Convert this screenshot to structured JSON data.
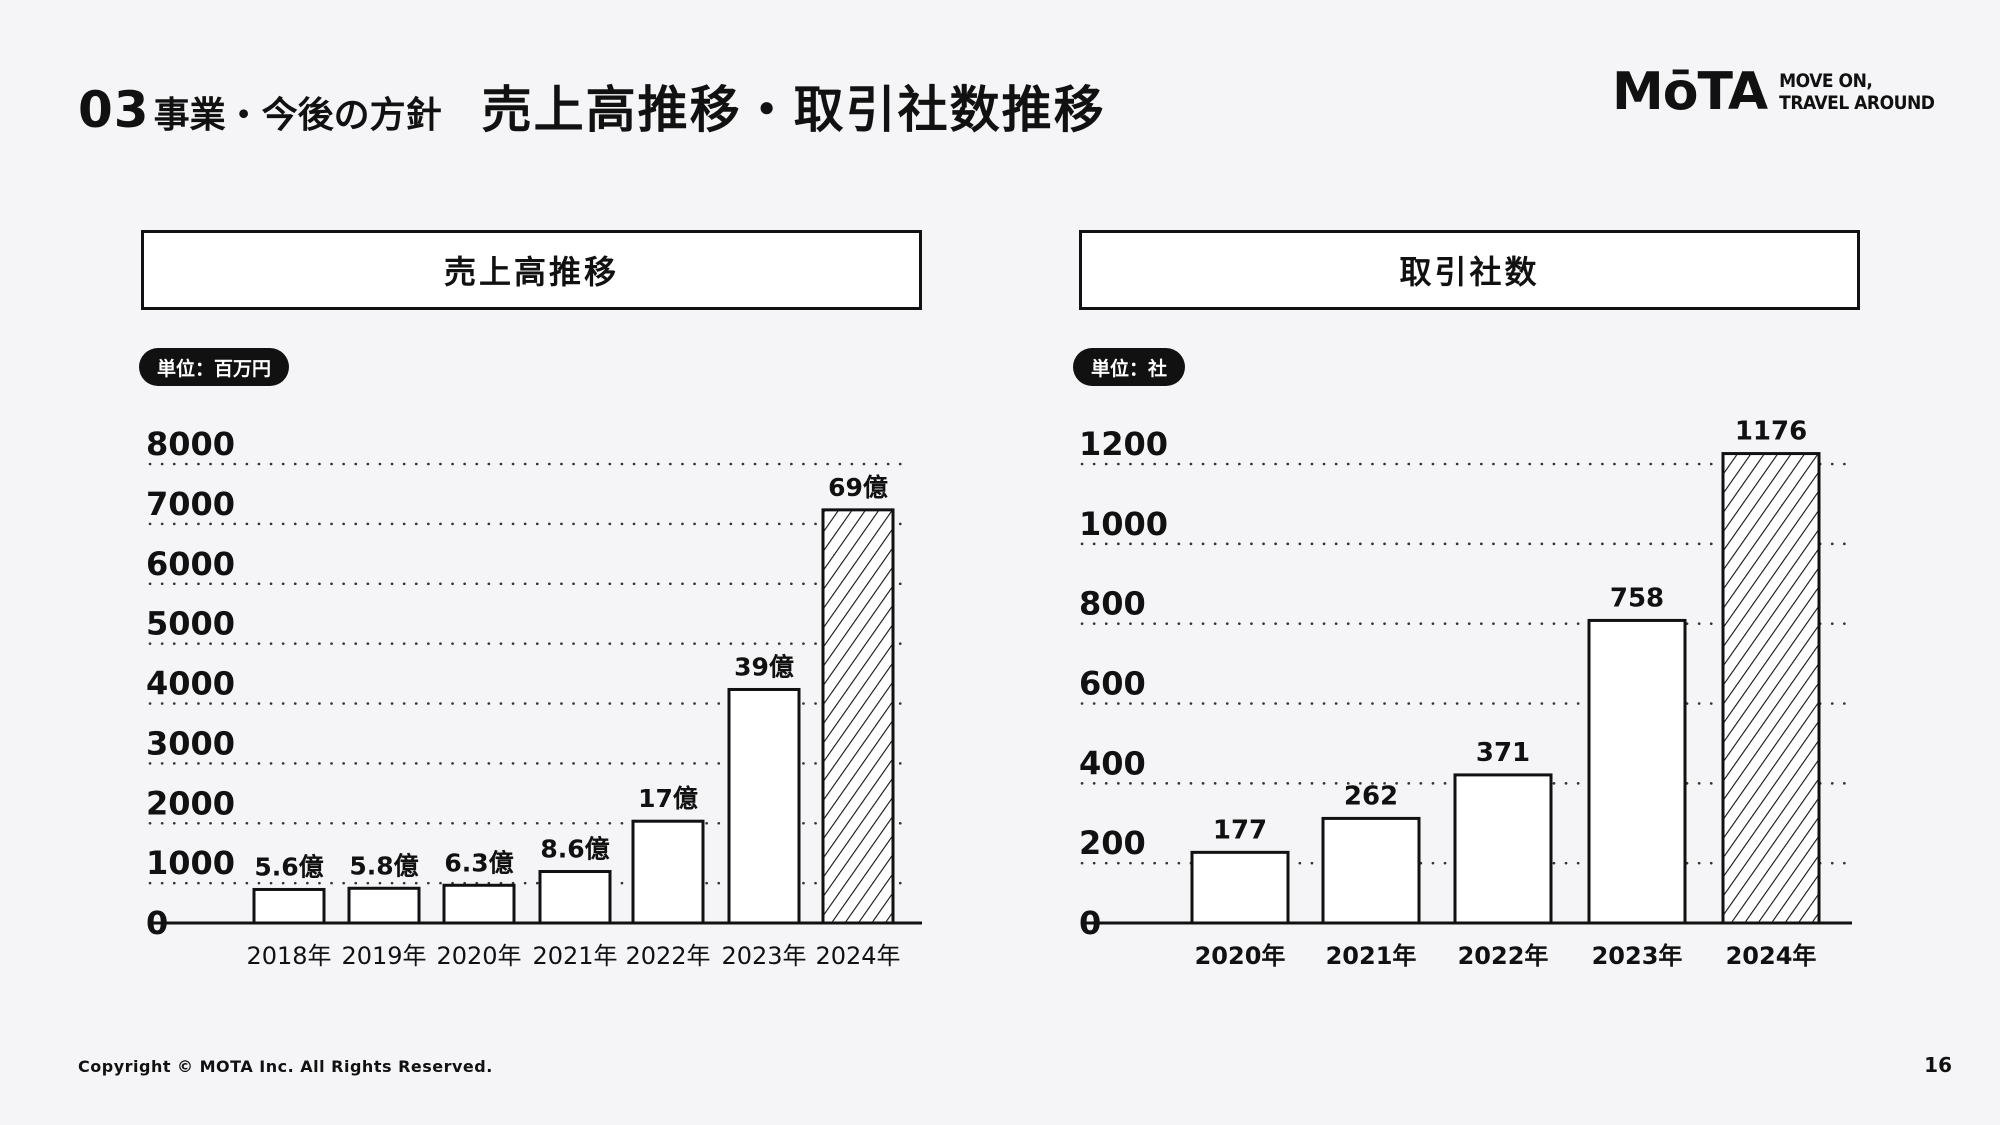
{
  "header": {
    "section_number": "03",
    "section_name": "事業・今後の方針",
    "title": "売上高推移・取引社数推移"
  },
  "logo": {
    "mark": "MōTA",
    "tagline_line1": "MOVE ON,",
    "tagline_line2": "TRAVEL AROUND"
  },
  "footer": {
    "copyright": "Copyright © MOTA Inc. All Rights Reserved.",
    "page_number": "16"
  },
  "chart_data": [
    {
      "type": "bar",
      "title": "売上高推移",
      "unit": "単位：百万円",
      "categories": [
        "2018年",
        "2019年",
        "2020年",
        "2021年",
        "2022年",
        "2023年",
        "2024年"
      ],
      "values": [
        560,
        580,
        630,
        860,
        1700,
        3900,
        6900
      ],
      "data_labels": [
        "5.6億",
        "5.8億",
        "6.3億",
        "8.6億",
        "17億",
        "39億",
        "69億"
      ],
      "yticks": [
        0,
        1000,
        2000,
        3000,
        4000,
        5000,
        6000,
        7000,
        8000
      ],
      "ylim": [
        0,
        8000
      ],
      "grid": "dotted",
      "highlight_last": true
    },
    {
      "type": "bar",
      "title": "取引社数",
      "unit": "単位：社",
      "categories": [
        "2020年",
        "2021年",
        "2022年",
        "2023年",
        "2024年"
      ],
      "values": [
        177,
        262,
        371,
        758,
        1176
      ],
      "data_labels": [
        "177",
        "262",
        "371",
        "758",
        "1176"
      ],
      "yticks": [
        0,
        200,
        400,
        600,
        800,
        1000,
        1200
      ],
      "ylim": [
        0,
        1200
      ],
      "grid": "dotted",
      "highlight_last": true
    }
  ]
}
